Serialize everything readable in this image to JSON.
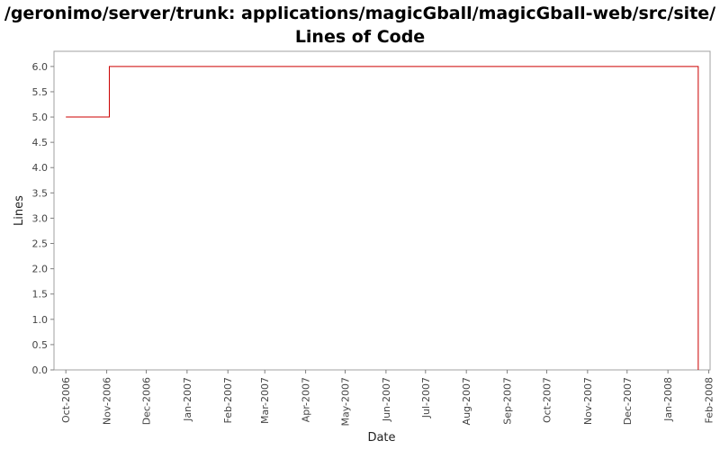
{
  "chart_data": {
    "type": "line",
    "title_lines": [
      "/geronimo/server/trunk: applications/magicGball/magicGball-web/src/site/",
      "Lines of Code"
    ],
    "xlabel": "Date",
    "ylabel": "Lines",
    "x_tick_labels": [
      "Oct-2006",
      "Nov-2006",
      "Dec-2006",
      "Jan-2007",
      "Feb-2007",
      "Mar-2007",
      "Apr-2007",
      "May-2007",
      "Jun-2007",
      "Jul-2007",
      "Aug-2007",
      "Sep-2007",
      "Oct-2007",
      "Nov-2007",
      "Dec-2007",
      "Jan-2008",
      "Feb-2008"
    ],
    "y_tick_labels": [
      "0.0",
      "0.5",
      "1.0",
      "1.5",
      "2.0",
      "2.5",
      "3.0",
      "3.5",
      "4.0",
      "4.5",
      "5.0",
      "5.5",
      "6.0"
    ],
    "xlim": [
      "2006-09-22",
      "2008-02-02"
    ],
    "ylim": [
      0,
      6.3
    ],
    "grid": false,
    "step": true,
    "series": [
      {
        "color": "#cc0000",
        "points": [
          {
            "x": "2006-10-01",
            "y": 5
          },
          {
            "x": "2006-11-03",
            "y": 6
          },
          {
            "x": "2008-01-24",
            "y": 6
          },
          {
            "x": "2008-01-24",
            "y": 0
          }
        ]
      }
    ]
  }
}
